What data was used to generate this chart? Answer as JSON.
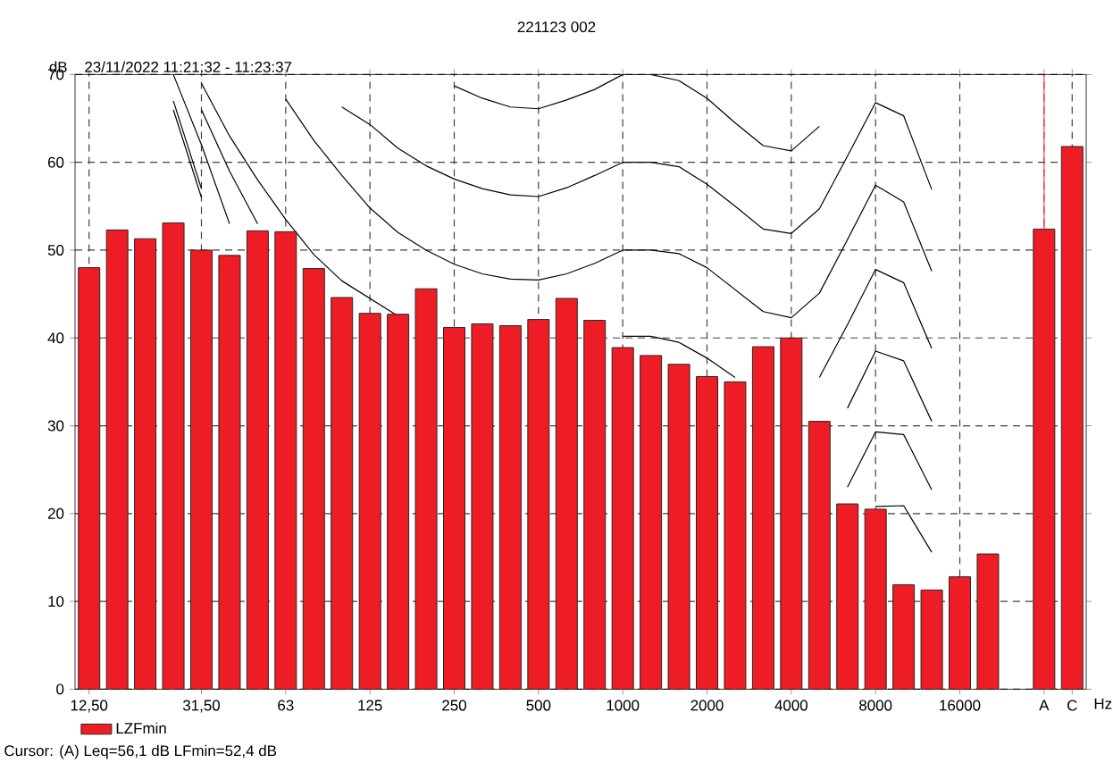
{
  "chart_data": {
    "type": "bar",
    "title": "221123 002",
    "subtitle": "23/11/2022 11:21:32 - 11:23:37",
    "xlabel": "Hz",
    "ylabel": "dB",
    "annotations": [
      "Cursor: (A)  Leq=56,1 dB  LFmin=52,4 dB"
    ],
    "categories": [
      "12,50",
      null,
      null,
      null,
      "31,50",
      null,
      null,
      "63",
      null,
      null,
      "125",
      null,
      null,
      "250",
      null,
      null,
      "500",
      null,
      null,
      "1000",
      null,
      null,
      "2000",
      null,
      null,
      "4000",
      null,
      null,
      "8000",
      null,
      null,
      "16000",
      null,
      null,
      "A",
      "C"
    ],
    "series": [
      {
        "name": "LZFmin",
        "color": "#ee1c24",
        "values": [
          48.0,
          52.3,
          51.3,
          53.1,
          50.0,
          49.4,
          52.2,
          52.1,
          47.9,
          44.6,
          42.8,
          42.7,
          45.6,
          41.2,
          41.6,
          41.4,
          42.1,
          44.5,
          42.0,
          38.9,
          38.0,
          37.0,
          35.6,
          35.0,
          39.0,
          40.0,
          30.5,
          21.1,
          20.5,
          11.9,
          11.3,
          12.8,
          15.4,
          null,
          52.4,
          61.8
        ]
      },
      {
        "type": "line",
        "color": "#000000",
        "values": [
          null,
          null,
          null,
          null,
          null,
          null,
          null,
          null,
          null,
          null,
          null,
          null,
          null,
          68.7,
          67.3,
          66.3,
          66.1,
          67.1,
          68.3,
          70,
          70,
          69.3,
          67.3,
          64.5,
          61.9,
          61.3,
          64.1,
          null,
          null,
          null,
          null,
          null,
          null,
          null,
          null,
          null
        ]
      },
      {
        "type": "line",
        "color": "#000000",
        "values": [
          null,
          null,
          null,
          null,
          null,
          null,
          null,
          null,
          null,
          66.3,
          64.3,
          61.6,
          59.6,
          58.1,
          57.0,
          56.3,
          56.1,
          57.1,
          58.5,
          60,
          60,
          59.5,
          57.5,
          55.0,
          52.4,
          51.9,
          54.7,
          60.7,
          66.8,
          65.3,
          56.9,
          null,
          null,
          null,
          null,
          null
        ]
      },
      {
        "type": "line",
        "color": "#000000",
        "values": [
          null,
          null,
          null,
          null,
          null,
          null,
          null,
          67.2,
          62.5,
          58.5,
          54.8,
          52.0,
          50.0,
          48.4,
          47.3,
          46.7,
          46.6,
          47.3,
          48.5,
          50,
          50,
          49.6,
          48.0,
          45.5,
          43.0,
          42.3,
          45.1,
          51.2,
          57.4,
          55.5,
          47.6,
          null,
          null,
          null,
          null,
          null
        ]
      },
      {
        "type": "line",
        "color": "#000000",
        "values": [
          null,
          null,
          null,
          null,
          69,
          63,
          58,
          53.5,
          49.5,
          46.5,
          44.5,
          42.5,
          null,
          null,
          null,
          null,
          null,
          null,
          null,
          40.2,
          40.2,
          39.5,
          37.7,
          35.5,
          null,
          null,
          35.5,
          41.5,
          47.8,
          46.3,
          38.8,
          null,
          null,
          null,
          null,
          null
        ]
      },
      {
        "type": "line",
        "color": "#000000",
        "values": [
          null,
          null,
          null,
          null,
          66,
          59,
          53,
          null,
          null,
          null,
          null,
          null,
          null,
          null,
          null,
          null,
          null,
          null,
          null,
          null,
          null,
          null,
          null,
          null,
          null,
          null,
          null,
          32,
          38.5,
          37.4,
          30.5,
          null,
          null,
          null,
          null,
          null
        ]
      },
      {
        "type": "line",
        "color": "#000000",
        "values": [
          null,
          null,
          null,
          70,
          62,
          53,
          null,
          null,
          null,
          null,
          null,
          null,
          null,
          null,
          null,
          null,
          null,
          null,
          null,
          null,
          null,
          null,
          null,
          null,
          null,
          null,
          null,
          23,
          29.3,
          29.0,
          22.7,
          null,
          null,
          null,
          null,
          null
        ]
      },
      {
        "type": "line",
        "color": "#000000",
        "values": [
          null,
          null,
          null,
          67,
          57,
          null,
          null,
          null,
          null,
          null,
          null,
          null,
          null,
          null,
          null,
          null,
          null,
          null,
          null,
          null,
          null,
          null,
          null,
          null,
          null,
          null,
          null,
          null,
          20.8,
          20.9,
          15.6,
          null,
          null,
          null,
          null,
          null
        ]
      },
      {
        "type": "line",
        "color": "#000000",
        "values": [
          null,
          null,
          null,
          66,
          56,
          null,
          null,
          null,
          null,
          null,
          null,
          null,
          null,
          null,
          null,
          null,
          null,
          null,
          null,
          null,
          null,
          null,
          null,
          null,
          null,
          null,
          null,
          null,
          null,
          null,
          null,
          null,
          null,
          null,
          null,
          null
        ]
      }
    ],
    "ylim": [
      0,
      70
    ],
    "yticks": [
      0,
      10,
      20,
      30,
      40,
      50,
      60,
      70
    ],
    "grid": true,
    "legend": "bottom left",
    "ref_lines": [
      {
        "axis": "x",
        "value": "A",
        "color": "#ff4040"
      }
    ]
  }
}
